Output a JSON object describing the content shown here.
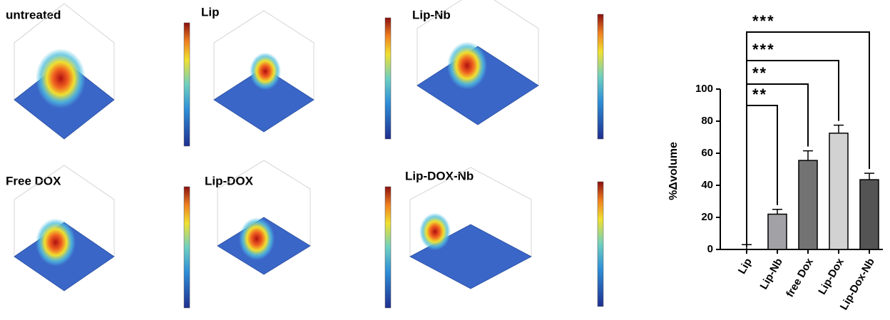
{
  "panels": [
    {
      "label": "untreated"
    },
    {
      "label": "Lip"
    },
    {
      "label": "Lip-Nb"
    },
    {
      "label": "Free DOX"
    },
    {
      "label": "Lip-DOX"
    },
    {
      "label": "Lip-DOX-Nb"
    }
  ],
  "chart_data": {
    "type": "bar",
    "y_label": "%Δvolume",
    "categories": [
      "Lip",
      "Lip-Nb",
      "free Dox",
      "Lip-Dox",
      "Lip-Dox-Nb"
    ],
    "values": [
      0,
      22,
      55.5,
      72.5,
      43.5
    ],
    "errors": [
      3,
      3,
      6,
      5,
      4
    ],
    "colors": [
      "#ffffff",
      "#a2a2a6",
      "#737373",
      "#d2d2d2",
      "#545454"
    ],
    "ylim": [
      0,
      100
    ],
    "yticks": [
      0,
      20,
      40,
      60,
      80,
      100
    ],
    "significance": [
      "**",
      "**",
      "***",
      "***"
    ]
  }
}
